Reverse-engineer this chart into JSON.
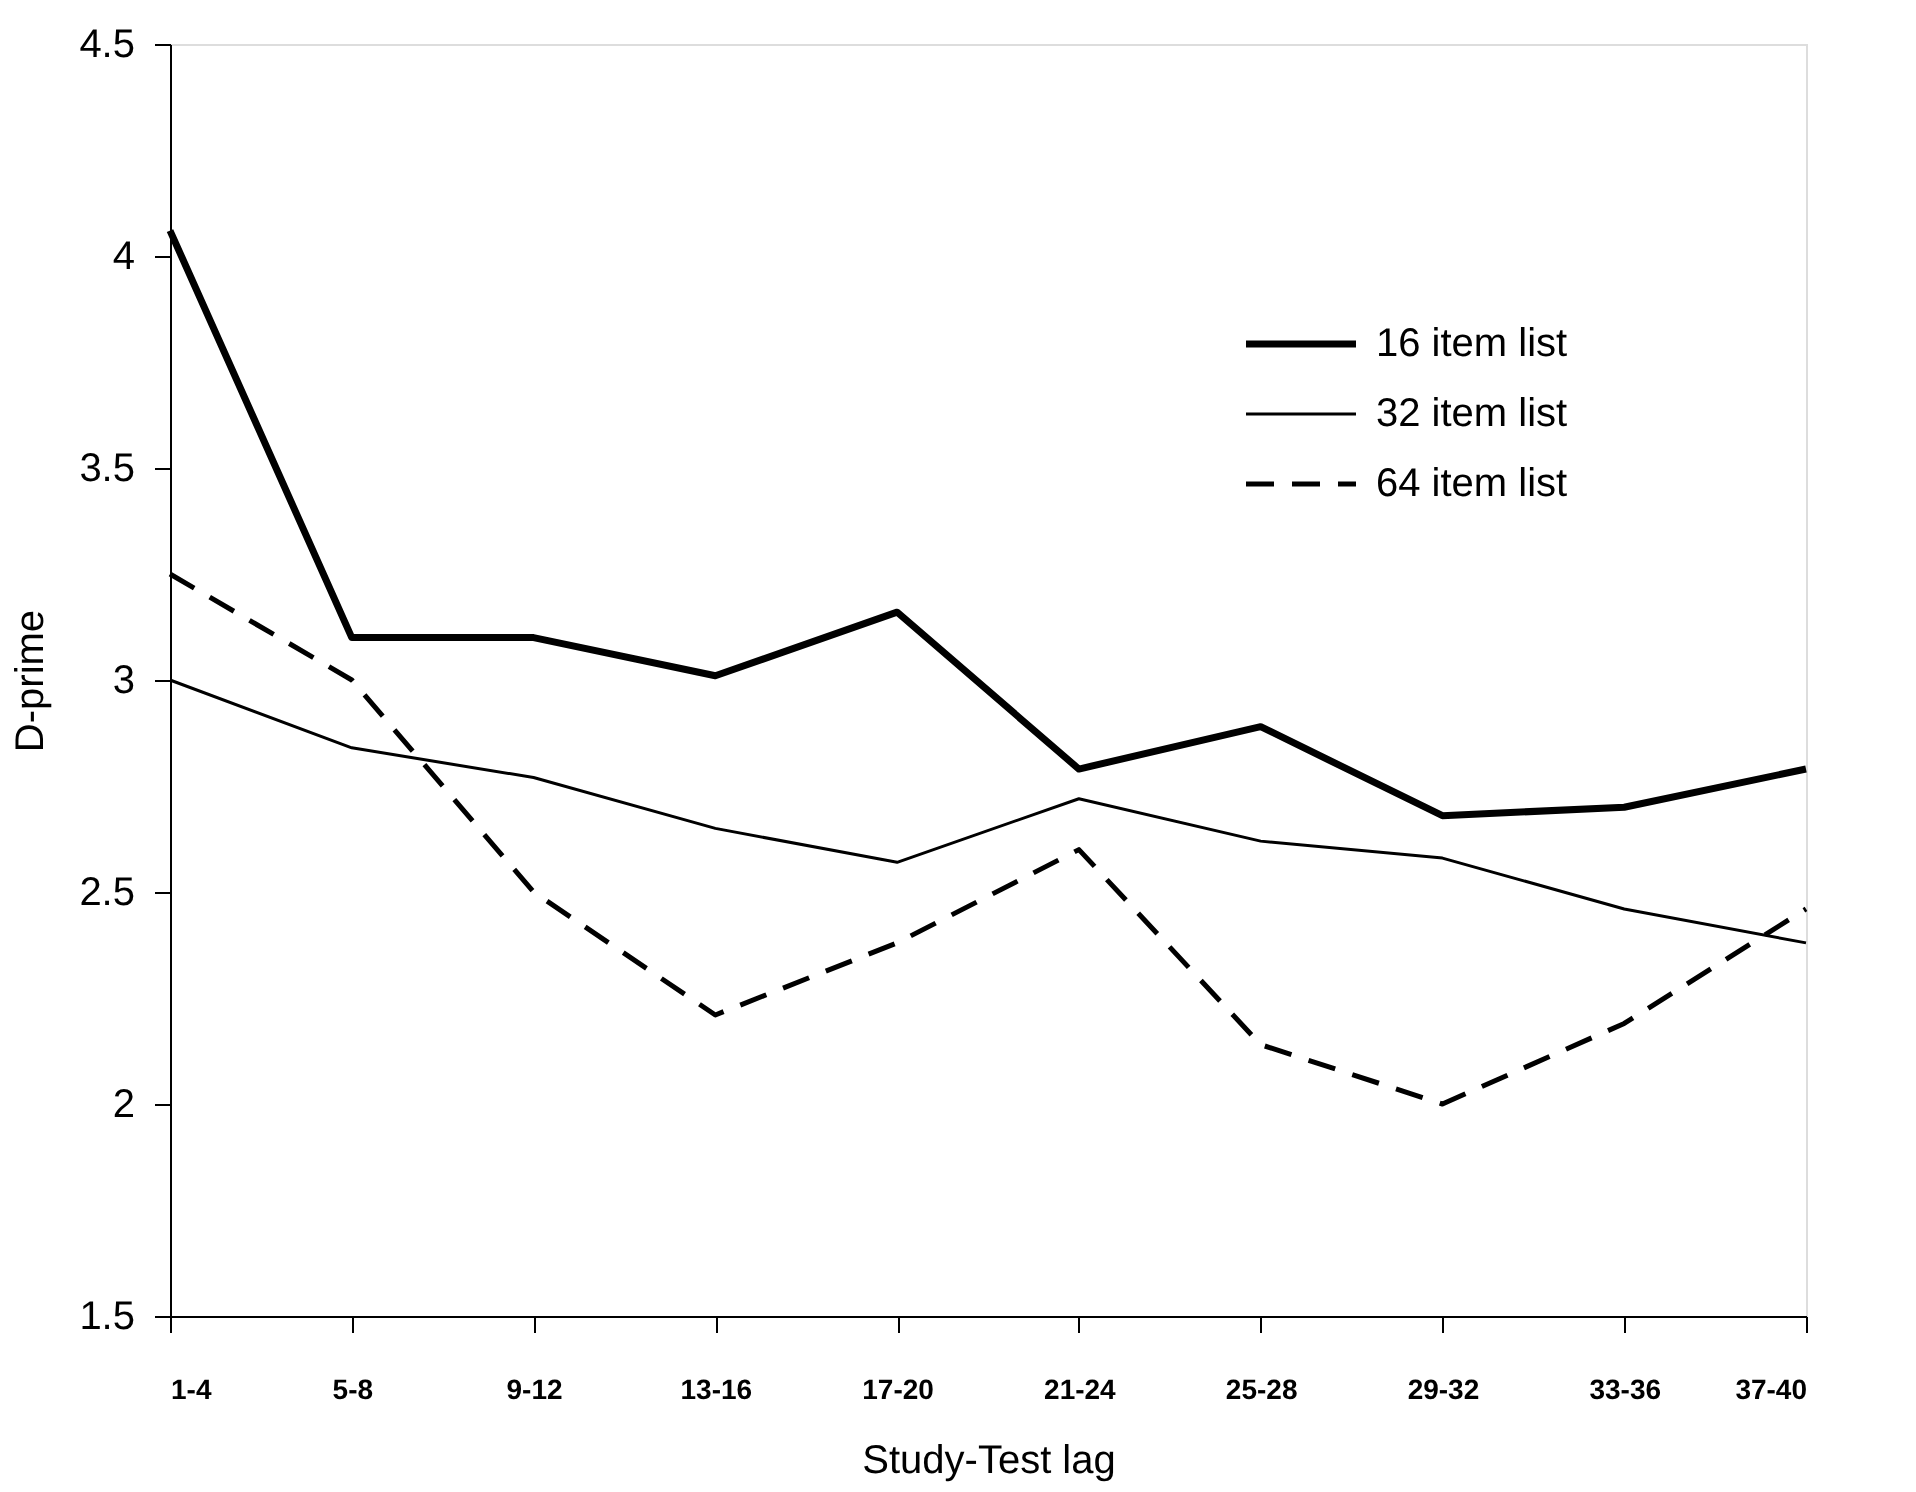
{
  "chart_data": {
    "type": "line",
    "xlabel": "Study-Test lag",
    "ylabel": "D-prime",
    "categories": [
      "1-4",
      "5-8",
      "9-12",
      "13-16",
      "17-20",
      "21-24",
      "25-28",
      "29-32",
      "33-36",
      "37-40"
    ],
    "series": [
      {
        "name": "16 item list",
        "color": "#000000",
        "line_style": "solid",
        "values": [
          4.06,
          3.1,
          3.1,
          3.01,
          3.16,
          2.79,
          2.89,
          2.68,
          2.7,
          2.79
        ]
      },
      {
        "name": "32 item list",
        "color": "#000000",
        "line_style": "solid",
        "values": [
          3.0,
          2.84,
          2.77,
          2.65,
          2.57,
          2.72,
          2.62,
          2.58,
          2.46,
          2.38
        ]
      },
      {
        "name": "64 item list",
        "color": "#000000",
        "line_style": "dashed",
        "values": [
          3.25,
          3.0,
          2.5,
          2.21,
          2.38,
          2.6,
          2.14,
          2.0,
          2.19,
          2.46
        ]
      }
    ],
    "ylim": [
      1.5,
      4.5
    ],
    "yticks": [
      1.5,
      2,
      2.5,
      3,
      3.5,
      4,
      4.5
    ],
    "grid": false,
    "legend": "top right",
    "marker": "none"
  }
}
